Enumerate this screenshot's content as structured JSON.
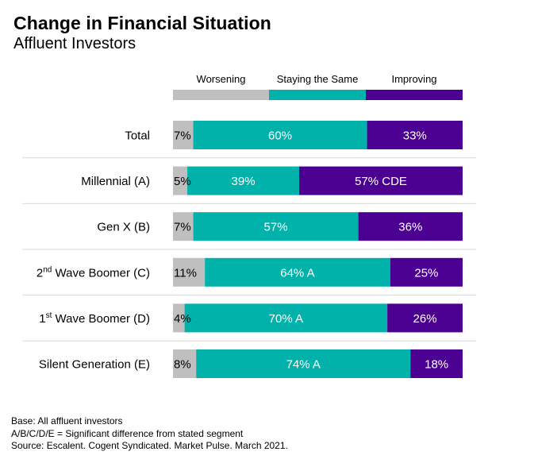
{
  "header": {
    "title": "Change in Financial Situation",
    "subtitle": "Affluent Investors"
  },
  "colors": {
    "worsening": "#bfbfbf",
    "staying": "#00b2a9",
    "improving": "#4b0091",
    "divider": "#d9d9d9"
  },
  "chart_data": {
    "type": "bar",
    "orientation": "horizontal",
    "stacked": true,
    "normalized": true,
    "title": "Change in Financial Situation",
    "subtitle": "Affluent Investors",
    "legend_position": "top",
    "categories": [
      {
        "prefix": "Total",
        "sup": "",
        "suffix": ""
      },
      {
        "prefix": "Millennial (A)",
        "sup": "",
        "suffix": ""
      },
      {
        "prefix": "Gen X (B)",
        "sup": "",
        "suffix": ""
      },
      {
        "prefix": "2",
        "sup": "nd",
        "suffix": " Wave Boomer (C)"
      },
      {
        "prefix": "1",
        "sup": "st",
        "suffix": " Wave Boomer (D)"
      },
      {
        "prefix": "Silent Generation (E)",
        "sup": "",
        "suffix": ""
      }
    ],
    "series": [
      {
        "name": "Worsening",
        "values": [
          7,
          5,
          7,
          11,
          4,
          8
        ],
        "labels": [
          "7%",
          "5%",
          "7%",
          "11%",
          "4%",
          "8%"
        ]
      },
      {
        "name": "Staying the Same",
        "values": [
          60,
          39,
          57,
          64,
          70,
          74
        ],
        "labels": [
          "60%",
          "39%",
          "57%",
          "64% A",
          "70% A",
          "74% A"
        ]
      },
      {
        "name": "Improving",
        "values": [
          33,
          57,
          36,
          25,
          26,
          18
        ],
        "labels": [
          "33%",
          "57% CDE",
          "36%",
          "25%",
          "26%",
          "18%"
        ]
      }
    ]
  },
  "footnotes": {
    "base": "Base: All affluent  investors",
    "significance": "A/B/C/D/E = Significant difference  from  stated segment",
    "source": "Source: Escalent. Cogent  Syndicated. Market Pulse. March 2021."
  }
}
